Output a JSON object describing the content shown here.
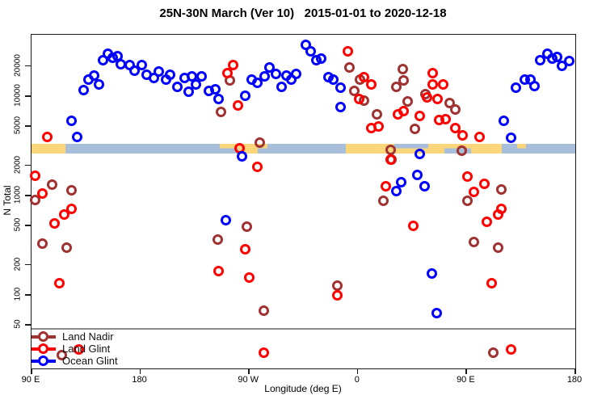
{
  "title": "25N-30N March (Ver 10)   2015-01-01 to 2020-12-18",
  "x_axis": {
    "label": "Longitude (deg E)",
    "note": "longitude increases continuously from left edge 90E eastward through 180, 90W, 0, 90E to 180 (axis coordinate 90..540)",
    "ticks": [
      {
        "lon": 90,
        "label": "90 E"
      },
      {
        "lon": 180,
        "label": "180"
      },
      {
        "lon": 270,
        "label": "90 W"
      },
      {
        "lon": 360,
        "label": "0"
      },
      {
        "lon": 450,
        "label": "90 E"
      },
      {
        "lon": 540,
        "label": "180"
      }
    ]
  },
  "y_axis": {
    "label": "N Total",
    "scale": "log10",
    "ticks": [
      50,
      100,
      200,
      500,
      1000,
      2000,
      5000,
      10000,
      20000
    ]
  },
  "legend": {
    "entries": [
      {
        "label": "Land Nadir",
        "color": "#A03232"
      },
      {
        "label": "Land Glint",
        "color": "#FF0000"
      },
      {
        "label": "Ocean Glint",
        "color": "#0000FF"
      }
    ]
  },
  "map_band": {
    "description": "land/ocean strip map of the 25N-30N latitude belt drawn across the plot near N Total = 2900",
    "land_color": "#FAD57A",
    "ocean_color": "#A8BFDC",
    "segments": [
      {
        "from": 90,
        "to": 118,
        "type": "land"
      },
      {
        "from": 118,
        "to": 246,
        "type": "ocean"
      },
      {
        "from": 246,
        "to": 261,
        "type": "mix_lo"
      },
      {
        "from": 261,
        "to": 277,
        "type": "land"
      },
      {
        "from": 277,
        "to": 285,
        "type": "mix_lo"
      },
      {
        "from": 285,
        "to": 350,
        "type": "ocean"
      },
      {
        "from": 350,
        "to": 390,
        "type": "land"
      },
      {
        "from": 390,
        "to": 418,
        "type": "mix_ol"
      },
      {
        "from": 418,
        "to": 432,
        "type": "land"
      },
      {
        "from": 432,
        "to": 454,
        "type": "mix_lo"
      },
      {
        "from": 454,
        "to": 479,
        "type": "land"
      },
      {
        "from": 479,
        "to": 492,
        "type": "ocean"
      },
      {
        "from": 492,
        "to": 499,
        "type": "mix_lo"
      },
      {
        "from": 499,
        "to": 540,
        "type": "ocean"
      }
    ]
  },
  "chart_data": {
    "type": "scatter",
    "title": "25N-30N March (Ver 10)   2015-01-01 to 2020-12-18",
    "xlabel": "Longitude (deg E)",
    "ylabel": "N Total",
    "x_range": [
      90,
      540
    ],
    "y_range_log": [
      15,
      39000
    ],
    "grid": false,
    "legend_position": "bottom-left",
    "series": [
      {
        "name": "Land Nadir",
        "color": "#A03232",
        "points": [
          [
            93,
            910
          ],
          [
            99,
            330
          ],
          [
            107,
            1280
          ],
          [
            115,
            25
          ],
          [
            119,
            300
          ],
          [
            123,
            1140
          ],
          [
            244,
            360
          ],
          [
            247,
            6900
          ],
          [
            254,
            14300
          ],
          [
            268,
            490
          ],
          [
            279,
            3440
          ],
          [
            282,
            70
          ],
          [
            343,
            125
          ],
          [
            353,
            19600
          ],
          [
            357,
            11200
          ],
          [
            362,
            14800
          ],
          [
            365,
            9100
          ],
          [
            376,
            6600
          ],
          [
            381,
            880
          ],
          [
            387,
            2900
          ],
          [
            388,
            2300
          ],
          [
            392,
            12300
          ],
          [
            397,
            18600
          ],
          [
            398,
            14500
          ],
          [
            401,
            8900
          ],
          [
            407,
            4700
          ],
          [
            416,
            10400
          ],
          [
            436,
            8600
          ],
          [
            441,
            7400
          ],
          [
            446,
            2800
          ],
          [
            451,
            890
          ],
          [
            456,
            340
          ],
          [
            472,
            26
          ],
          [
            476,
            300
          ],
          [
            479,
            1160
          ]
        ]
      },
      {
        "name": "Land Glint",
        "color": "#FF0000",
        "points": [
          [
            93,
            1570
          ],
          [
            99,
            1040
          ],
          [
            103,
            3900
          ],
          [
            109,
            520
          ],
          [
            113,
            130
          ],
          [
            117,
            640
          ],
          [
            123,
            740
          ],
          [
            129,
            28
          ],
          [
            245,
            175
          ],
          [
            252,
            16900
          ],
          [
            257,
            20700
          ],
          [
            261,
            8000
          ],
          [
            262,
            3000
          ],
          [
            267,
            290
          ],
          [
            270,
            150
          ],
          [
            277,
            1960
          ],
          [
            282,
            26
          ],
          [
            343,
            100
          ],
          [
            352,
            28000
          ],
          [
            361,
            9300
          ],
          [
            365,
            15400
          ],
          [
            371,
            13200
          ],
          [
            371,
            4800
          ],
          [
            377,
            5000
          ],
          [
            383,
            1230
          ],
          [
            387,
            2300
          ],
          [
            393,
            6600
          ],
          [
            398,
            7100
          ],
          [
            406,
            500
          ],
          [
            411,
            6300
          ],
          [
            417,
            9800
          ],
          [
            422,
            16900
          ],
          [
            422,
            13200
          ],
          [
            426,
            9300
          ],
          [
            427,
            5800
          ],
          [
            431,
            13200
          ],
          [
            433,
            5900
          ],
          [
            441,
            4800
          ],
          [
            447,
            4000
          ],
          [
            451,
            1540
          ],
          [
            456,
            1080
          ],
          [
            461,
            3900
          ],
          [
            465,
            1300
          ],
          [
            467,
            540
          ],
          [
            471,
            130
          ],
          [
            476,
            640
          ],
          [
            479,
            740
          ],
          [
            487,
            28
          ]
        ]
      },
      {
        "name": "Ocean Glint",
        "color": "#0000FF",
        "points": [
          [
            123,
            5700
          ],
          [
            128,
            3900
          ],
          [
            133,
            11600
          ],
          [
            137,
            14800
          ],
          [
            142,
            16000
          ],
          [
            146,
            13200
          ],
          [
            149,
            23200
          ],
          [
            153,
            26500
          ],
          [
            157,
            24200
          ],
          [
            161,
            25100
          ],
          [
            164,
            21100
          ],
          [
            171,
            20400
          ],
          [
            175,
            18200
          ],
          [
            181,
            20700
          ],
          [
            185,
            16300
          ],
          [
            191,
            15200
          ],
          [
            195,
            17700
          ],
          [
            201,
            14800
          ],
          [
            205,
            16300
          ],
          [
            211,
            12300
          ],
          [
            217,
            15200
          ],
          [
            220,
            11000
          ],
          [
            223,
            15900
          ],
          [
            226,
            13200
          ],
          [
            231,
            15900
          ],
          [
            237,
            11200
          ],
          [
            242,
            11800
          ],
          [
            245,
            9300
          ],
          [
            251,
            560
          ],
          [
            264,
            2500
          ],
          [
            267,
            10100
          ],
          [
            272,
            14800
          ],
          [
            277,
            13500
          ],
          [
            283,
            15700
          ],
          [
            287,
            19300
          ],
          [
            292,
            16800
          ],
          [
            297,
            12300
          ],
          [
            301,
            16000
          ],
          [
            305,
            14600
          ],
          [
            309,
            16800
          ],
          [
            317,
            33000
          ],
          [
            321,
            28000
          ],
          [
            326,
            23200
          ],
          [
            330,
            23700
          ],
          [
            336,
            15400
          ],
          [
            340,
            14800
          ],
          [
            346,
            12100
          ],
          [
            346,
            7800
          ],
          [
            392,
            1100
          ],
          [
            396,
            1350
          ],
          [
            409,
            1600
          ],
          [
            411,
            2600
          ],
          [
            415,
            1230
          ],
          [
            421,
            165
          ],
          [
            425,
            66
          ],
          [
            481,
            5700
          ],
          [
            487,
            3800
          ],
          [
            491,
            12100
          ],
          [
            498,
            14800
          ],
          [
            503,
            14800
          ],
          [
            506,
            12600
          ],
          [
            511,
            23200
          ],
          [
            517,
            26500
          ],
          [
            521,
            23700
          ],
          [
            525,
            24700
          ],
          [
            529,
            20200
          ],
          [
            535,
            22700
          ]
        ]
      }
    ]
  }
}
